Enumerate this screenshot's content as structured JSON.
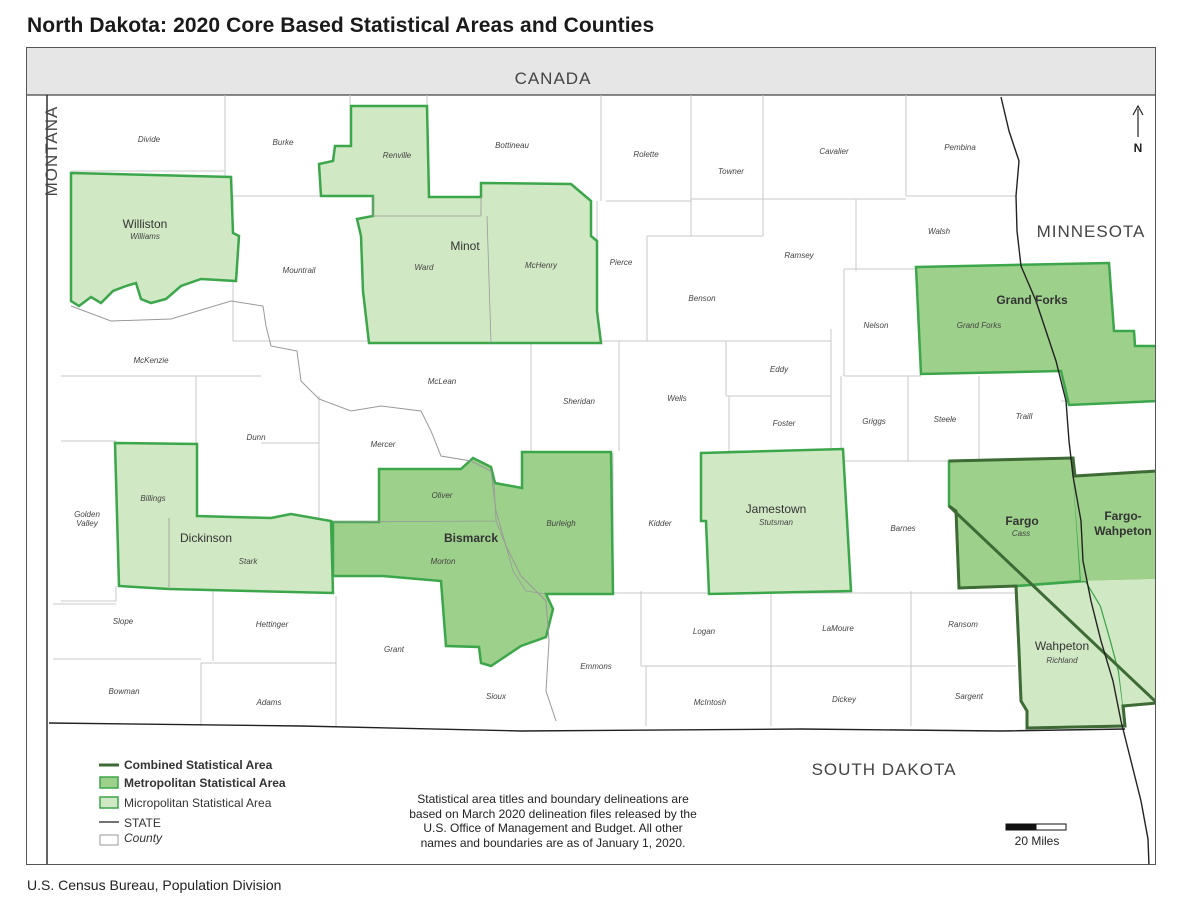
{
  "title": "North Dakota: 2020 Core Based Statistical Areas and Counties",
  "footer": "U.S. Census Bureau, Population Division",
  "colors": {
    "micropolitan_fill": "#d1e8c4",
    "metropolitan_fill": "#9dd08b",
    "area_outline": "#3ca64b",
    "csa_outline": "#3e6b35",
    "county_line": "#c8c8c8",
    "canada_fill": "#e6e6e6"
  },
  "regions": {
    "canada": "CANADA",
    "montana": "MONTANA",
    "minnesota": "MINNESOTA",
    "south_dakota": "SOUTH DAKOTA"
  },
  "north_arrow": "N",
  "scale_bar": "20 Miles",
  "statistical_areas": {
    "williston": "Williston",
    "minot": "Minot",
    "grand_forks": "Grand Forks",
    "bismarck": "Bismarck",
    "jamestown": "Jamestown",
    "dickinson": "Dickinson",
    "fargo": "Fargo",
    "fargo_wahpeton": "Fargo-\nWahpeton",
    "wahpeton": "Wahpeton"
  },
  "counties": {
    "divide": "Divide",
    "burke": "Burke",
    "renville": "Renville",
    "bottineau": "Bottineau",
    "rolette": "Rolette",
    "towner": "Towner",
    "cavalier": "Cavalier",
    "pembina": "Pembina",
    "williams": "Williams",
    "mountrail": "Mountrail",
    "ward": "Ward",
    "mchenry": "McHenry",
    "pierce": "Pierce",
    "ramsey": "Ramsey",
    "walsh": "Walsh",
    "benson": "Benson",
    "nelson": "Nelson",
    "grand_forks": "Grand Forks",
    "mckenzie": "McKenzie",
    "mclean": "McLean",
    "sheridan": "Sheridan",
    "wells": "Wells",
    "eddy": "Eddy",
    "foster": "Foster",
    "griggs": "Griggs",
    "steele": "Steele",
    "traill": "Traill",
    "dunn": "Dunn",
    "mercer": "Mercer",
    "oliver": "Oliver",
    "burleigh": "Burleigh",
    "kidder": "Kidder",
    "stutsman": "Stutsman",
    "barnes": "Barnes",
    "cass": "Cass",
    "billings": "Billings",
    "golden_valley": "Golden\nValley",
    "stark": "Stark",
    "morton": "Morton",
    "slope": "Slope",
    "hettinger": "Hettinger",
    "grant": "Grant",
    "emmons": "Emmons",
    "logan": "Logan",
    "lamoure": "LaMoure",
    "ransom": "Ransom",
    "richland": "Richland",
    "bowman": "Bowman",
    "adams": "Adams",
    "sioux": "Sioux",
    "mcintosh": "McIntosh",
    "dickey": "Dickey",
    "sargent": "Sargent"
  },
  "legend": {
    "csa": "Combined Statistical Area",
    "msa": "Metropolitan Statistical Area",
    "micro": "Micropolitan Statistical Area",
    "state": "STATE",
    "county": "County"
  },
  "note": [
    "Statistical area titles and boundary delineations are",
    "based on March 2020 delineation files released by the",
    "U.S. Office of Management and Budget. All other",
    "names and boundaries are as of January 1, 2020."
  ]
}
